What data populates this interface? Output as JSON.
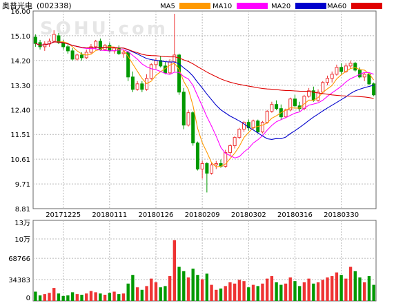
{
  "header": {
    "stock_name": "奥普光电",
    "stock_code": "(002338)",
    "watermark": "SOHU.com",
    "legend": [
      {
        "name": "MA5",
        "color": "#ff9900"
      },
      {
        "name": "MA10",
        "color": "#ff00ff"
      },
      {
        "name": "MA20",
        "color": "#0000cc"
      },
      {
        "name": "MA60",
        "color": "#e00000"
      }
    ]
  },
  "colors": {
    "up": "#ee3333",
    "down": "#009900",
    "grid": "#b8b8b8",
    "frame": "#666666"
  },
  "chart_data": [
    {
      "type": "candlestick",
      "title": "奥普光电(002338)",
      "ylim": [
        8.81,
        16.0
      ],
      "y_ticks": [
        "16.00",
        "15.10",
        "14.20",
        "13.30",
        "12.40",
        "11.51",
        "10.61",
        "9.71",
        "8.81"
      ],
      "x_labels": [
        "20171225",
        "20180111",
        "20180126",
        "20180209",
        "20180302",
        "20180316",
        "20180330"
      ],
      "x_label_index": [
        6,
        16,
        26,
        36,
        46,
        56,
        66
      ],
      "grid": true,
      "ohlc": [
        [
          15.05,
          15.15,
          14.7,
          14.82
        ],
        [
          14.85,
          14.95,
          14.6,
          14.7
        ],
        [
          14.7,
          14.9,
          14.55,
          14.8
        ],
        [
          14.8,
          15.0,
          14.7,
          14.9
        ],
        [
          14.9,
          15.3,
          14.85,
          15.15
        ],
        [
          15.1,
          15.2,
          14.8,
          14.85
        ],
        [
          14.85,
          14.95,
          14.6,
          14.7
        ],
        [
          14.7,
          14.8,
          14.45,
          14.55
        ],
        [
          14.55,
          14.65,
          14.2,
          14.25
        ],
        [
          14.25,
          14.45,
          14.2,
          14.4
        ],
        [
          14.4,
          14.5,
          14.2,
          14.3
        ],
        [
          14.3,
          14.6,
          14.25,
          14.5
        ],
        [
          14.5,
          14.8,
          14.45,
          14.7
        ],
        [
          14.7,
          14.95,
          14.6,
          14.9
        ],
        [
          14.9,
          15.0,
          14.55,
          14.6
        ],
        [
          14.6,
          14.8,
          14.55,
          14.75
        ],
        [
          14.75,
          14.85,
          14.5,
          14.55
        ],
        [
          14.55,
          14.7,
          14.45,
          14.65
        ],
        [
          14.65,
          14.75,
          14.4,
          14.45
        ],
        [
          14.45,
          14.6,
          14.3,
          14.5
        ],
        [
          14.5,
          14.55,
          13.45,
          13.6
        ],
        [
          13.6,
          13.8,
          13.05,
          13.15
        ],
        [
          13.15,
          13.45,
          13.1,
          13.35
        ],
        [
          13.35,
          13.45,
          13.05,
          13.15
        ],
        [
          13.15,
          13.7,
          13.1,
          13.55
        ],
        [
          13.55,
          14.1,
          13.5,
          14.05
        ],
        [
          14.05,
          14.3,
          13.9,
          14.2
        ],
        [
          14.2,
          14.35,
          13.95,
          14.0
        ],
        [
          14.0,
          14.15,
          13.7,
          13.75
        ],
        [
          13.75,
          14.25,
          13.7,
          14.15
        ],
        [
          14.15,
          15.9,
          13.8,
          14.4
        ],
        [
          14.4,
          14.45,
          12.95,
          13.05
        ],
        [
          13.05,
          13.2,
          11.7,
          11.85
        ],
        [
          11.85,
          12.4,
          11.8,
          12.3
        ],
        [
          12.3,
          12.35,
          11.1,
          11.2
        ],
        [
          11.2,
          11.25,
          10.2,
          10.25
        ],
        [
          10.25,
          10.55,
          9.9,
          10.45
        ],
        [
          10.45,
          10.5,
          9.4,
          10.1
        ],
        [
          10.1,
          10.5,
          10.05,
          10.4
        ],
        [
          10.4,
          10.55,
          10.25,
          10.45
        ],
        [
          10.45,
          10.6,
          10.3,
          10.35
        ],
        [
          10.35,
          10.95,
          10.3,
          10.85
        ],
        [
          10.85,
          11.15,
          10.7,
          11.1
        ],
        [
          11.1,
          11.45,
          11.0,
          11.4
        ],
        [
          11.4,
          11.75,
          11.35,
          11.7
        ],
        [
          11.7,
          12.0,
          11.6,
          11.95
        ],
        [
          11.95,
          12.05,
          11.65,
          11.75
        ],
        [
          11.75,
          12.05,
          11.7,
          12.0
        ],
        [
          12.0,
          12.05,
          11.55,
          11.6
        ],
        [
          11.6,
          12.0,
          11.55,
          11.95
        ],
        [
          11.95,
          12.4,
          11.9,
          12.35
        ],
        [
          12.35,
          12.7,
          12.3,
          12.6
        ],
        [
          12.6,
          12.75,
          12.4,
          12.45
        ],
        [
          12.45,
          12.6,
          12.05,
          12.15
        ],
        [
          12.15,
          12.45,
          12.1,
          12.4
        ],
        [
          12.4,
          12.85,
          12.35,
          12.8
        ],
        [
          12.8,
          12.95,
          12.5,
          12.55
        ],
        [
          12.55,
          12.7,
          12.35,
          12.45
        ],
        [
          12.45,
          12.95,
          12.4,
          12.9
        ],
        [
          12.9,
          13.2,
          12.85,
          13.1
        ],
        [
          13.1,
          13.25,
          12.7,
          12.75
        ],
        [
          12.75,
          13.15,
          12.7,
          13.05
        ],
        [
          13.05,
          13.45,
          13.0,
          13.4
        ],
        [
          13.4,
          13.65,
          13.3,
          13.55
        ],
        [
          13.55,
          13.8,
          13.4,
          13.7
        ],
        [
          13.7,
          14.05,
          13.65,
          13.95
        ],
        [
          13.95,
          14.1,
          13.7,
          13.8
        ],
        [
          13.8,
          14.1,
          13.75,
          14.0
        ],
        [
          14.0,
          14.2,
          13.9,
          14.1
        ],
        [
          14.1,
          14.15,
          13.8,
          13.85
        ],
        [
          13.85,
          13.95,
          13.55,
          13.6
        ],
        [
          13.6,
          13.75,
          13.45,
          13.7
        ],
        [
          13.7,
          13.75,
          13.3,
          13.35
        ],
        [
          13.35,
          13.4,
          12.9,
          12.95
        ]
      ]
    },
    {
      "type": "bar",
      "title": "",
      "ylim": [
        0,
        130000
      ],
      "y_ticks": [
        "13万",
        "10万",
        "68766",
        "34383",
        "0"
      ],
      "y_tick_values": [
        130000,
        100000,
        68766,
        34383,
        0
      ],
      "volume": [
        15000,
        9000,
        11000,
        13000,
        21000,
        12000,
        8000,
        9000,
        14000,
        11000,
        10000,
        12000,
        16000,
        14000,
        12000,
        10000,
        13000,
        15000,
        11000,
        12000,
        28000,
        42000,
        22000,
        18000,
        24000,
        36000,
        30000,
        22000,
        24000,
        40000,
        98000,
        55000,
        48000,
        38000,
        52000,
        42000,
        35000,
        44000,
        26000,
        18000,
        20000,
        24000,
        30000,
        28000,
        34000,
        32000,
        22000,
        26000,
        24000,
        28000,
        36000,
        40000,
        30000,
        26000,
        28000,
        38000,
        32000,
        24000,
        30000,
        36000,
        28000,
        30000,
        34000,
        38000,
        40000,
        46000,
        42000,
        36000,
        55000,
        48000,
        38000,
        30000,
        40000,
        26000
      ]
    }
  ]
}
